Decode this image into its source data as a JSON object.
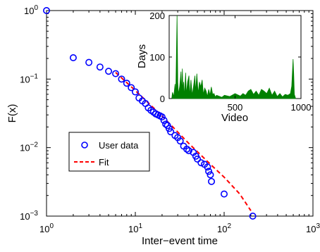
{
  "chart_data": [
    {
      "type": "scatter",
      "xscale": "log",
      "yscale": "log",
      "xlim": [
        1,
        1000
      ],
      "ylim": [
        0.001,
        1
      ],
      "xlabel": "Inter−event time",
      "ylabel": "F(x)",
      "x_ticks": [
        {
          "base": "10",
          "exp": "0"
        },
        {
          "base": "10",
          "exp": "1"
        },
        {
          "base": "10",
          "exp": "2"
        },
        {
          "base": "10",
          "exp": "3"
        }
      ],
      "y_ticks": [
        {
          "base": "10",
          "exp": "−3"
        },
        {
          "base": "10",
          "exp": "−2"
        },
        {
          "base": "10",
          "exp": "−1"
        },
        {
          "base": "10",
          "exp": "0"
        }
      ],
      "legend": {
        "placement": "center-left",
        "entries": [
          "User data",
          "Fit"
        ]
      },
      "colors": {
        "data": "#0000ff",
        "fit": "#ff0000"
      },
      "series": [
        {
          "name": "User data",
          "style": "open-circle",
          "points": [
            [
              1,
              1.0
            ],
            [
              2,
              0.205
            ],
            [
              3,
              0.175
            ],
            [
              4,
              0.15
            ],
            [
              5,
              0.13
            ],
            [
              6,
              0.12
            ],
            [
              7,
              0.1
            ],
            [
              8,
              0.087
            ],
            [
              9,
              0.075
            ],
            [
              10,
              0.065
            ],
            [
              11,
              0.053
            ],
            [
              12,
              0.048
            ],
            [
              13,
              0.044
            ],
            [
              14,
              0.038
            ],
            [
              15,
              0.035
            ],
            [
              16,
              0.033
            ],
            [
              17,
              0.031
            ],
            [
              18,
              0.03
            ],
            [
              19,
              0.029
            ],
            [
              20,
              0.028
            ],
            [
              21,
              0.025
            ],
            [
              22,
              0.022
            ],
            [
              23,
              0.021
            ],
            [
              24,
              0.019
            ],
            [
              25,
              0.017
            ],
            [
              28,
              0.015
            ],
            [
              30,
              0.014
            ],
            [
              32,
              0.0125
            ],
            [
              35,
              0.0105
            ],
            [
              38,
              0.0095
            ],
            [
              40,
              0.009
            ],
            [
              45,
              0.0085
            ],
            [
              48,
              0.0075
            ],
            [
              50,
              0.0068
            ],
            [
              55,
              0.006
            ],
            [
              60,
              0.0057
            ],
            [
              65,
              0.0052
            ],
            [
              67,
              0.0045
            ],
            [
              70,
              0.004
            ],
            [
              72,
              0.0032
            ],
            [
              100,
              0.0021
            ],
            [
              210,
              0.001
            ]
          ]
        },
        {
          "name": "Fit",
          "style": "dashed-line",
          "points": [
            [
              6,
              0.125
            ],
            [
              10,
              0.068
            ],
            [
              20,
              0.029
            ],
            [
              40,
              0.0115
            ],
            [
              70,
              0.0057
            ],
            [
              100,
              0.0037
            ],
            [
              150,
              0.0021
            ],
            [
              200,
              0.0012
            ]
          ]
        }
      ]
    },
    {
      "type": "area",
      "xlim": [
        0,
        1000
      ],
      "ylim": [
        0,
        200
      ],
      "xlabel": "Video",
      "ylabel": "Days",
      "x_ticks": [
        "500",
        "1000"
      ],
      "y_ticks": [
        "0",
        "100",
        "200"
      ],
      "colors": {
        "series": "#008000"
      },
      "series": [
        {
          "values": [
            [
              20,
              0
            ],
            [
              25,
              15
            ],
            [
              35,
              5
            ],
            [
              45,
              35
            ],
            [
              50,
              3
            ],
            [
              60,
              205
            ],
            [
              65,
              40
            ],
            [
              70,
              10
            ],
            [
              80,
              30
            ],
            [
              90,
              65
            ],
            [
              95,
              10
            ],
            [
              100,
              72
            ],
            [
              105,
              20
            ],
            [
              110,
              40
            ],
            [
              115,
              3
            ],
            [
              125,
              62
            ],
            [
              130,
              10
            ],
            [
              140,
              40
            ],
            [
              150,
              55
            ],
            [
              155,
              5
            ],
            [
              165,
              45
            ],
            [
              175,
              8
            ],
            [
              185,
              30
            ],
            [
              195,
              55
            ],
            [
              200,
              15
            ],
            [
              210,
              60
            ],
            [
              220,
              12
            ],
            [
              230,
              40
            ],
            [
              240,
              28
            ],
            [
              250,
              45
            ],
            [
              260,
              10
            ],
            [
              270,
              25
            ],
            [
              280,
              18
            ],
            [
              290,
              5
            ],
            [
              300,
              22
            ],
            [
              310,
              8
            ],
            [
              320,
              28
            ],
            [
              330,
              10
            ],
            [
              340,
              12
            ],
            [
              350,
              4
            ],
            [
              360,
              8
            ],
            [
              400,
              3
            ],
            [
              420,
              8
            ],
            [
              460,
              5
            ],
            [
              500,
              12
            ],
            [
              540,
              6
            ],
            [
              560,
              12
            ],
            [
              580,
              8
            ],
            [
              600,
              18
            ],
            [
              620,
              22
            ],
            [
              640,
              10
            ],
            [
              660,
              18
            ],
            [
              680,
              8
            ],
            [
              700,
              22
            ],
            [
              720,
              18
            ],
            [
              740,
              12
            ],
            [
              760,
              25
            ],
            [
              780,
              8
            ],
            [
              800,
              18
            ],
            [
              820,
              5
            ],
            [
              840,
              12
            ],
            [
              860,
              4
            ],
            [
              880,
              10
            ],
            [
              900,
              8
            ],
            [
              920,
              12
            ],
            [
              930,
              30
            ],
            [
              940,
              95
            ],
            [
              945,
              60
            ],
            [
              950,
              10
            ],
            [
              960,
              0
            ]
          ]
        }
      ]
    }
  ]
}
